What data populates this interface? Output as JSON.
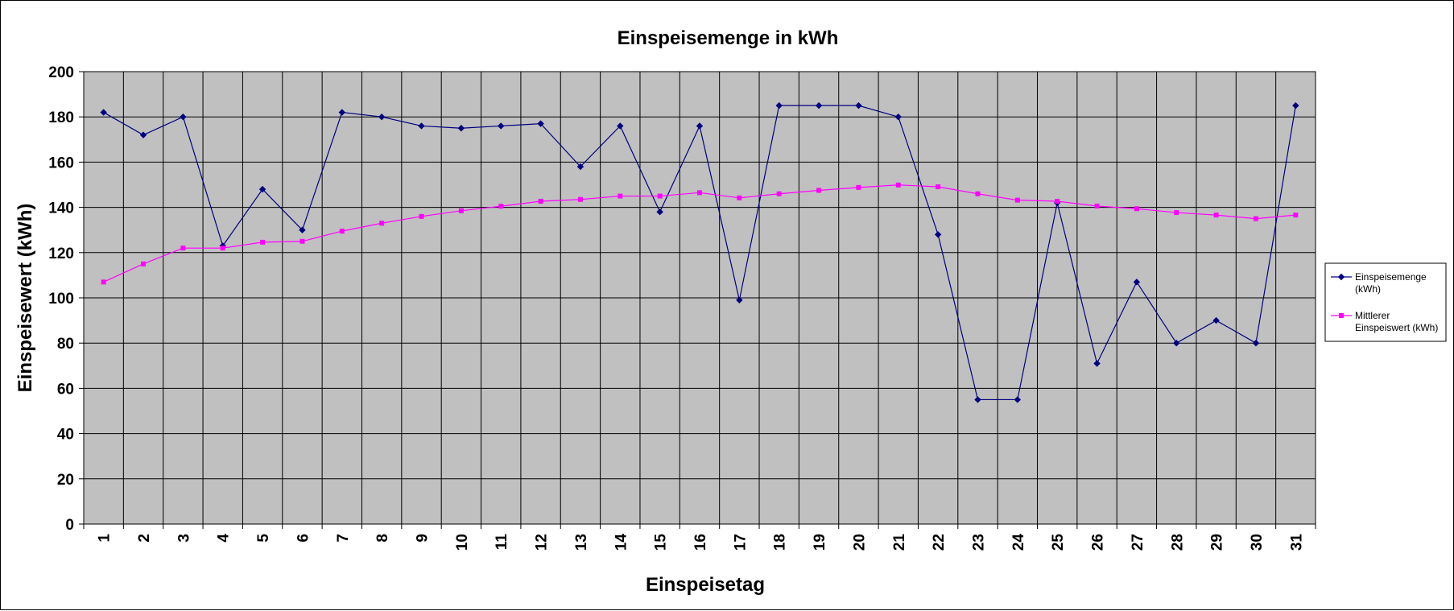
{
  "chart_data": {
    "type": "line",
    "title": "Einspeisemenge in kWh",
    "xlabel": "Einspeisetag",
    "ylabel": "Einspeisewert  (kWh)",
    "ylim": [
      0,
      200
    ],
    "yticks": [
      "0",
      "20",
      "40",
      "60",
      "80",
      "100",
      "120",
      "140",
      "160",
      "180",
      "200"
    ],
    "categories": [
      "1",
      "2",
      "3",
      "4",
      "5",
      "6",
      "7",
      "8",
      "9",
      "10",
      "11",
      "12",
      "13",
      "14",
      "15",
      "16",
      "17",
      "18",
      "19",
      "20",
      "21",
      "22",
      "23",
      "24",
      "25",
      "26",
      "27",
      "28",
      "29",
      "30",
      "31"
    ],
    "grid": true,
    "legend_position": "right",
    "plot_background": "#c0c0c0",
    "series": [
      {
        "name": "Einspeisemenge (kWh)",
        "legend_lines": [
          "Einspeisemenge",
          "(kWh)"
        ],
        "color": "#000080",
        "marker": "diamond",
        "values": [
          182,
          172,
          180,
          123,
          148,
          130,
          182,
          180,
          176,
          175,
          176,
          177,
          158,
          176,
          138,
          176,
          99,
          185,
          185,
          185,
          180,
          128,
          55,
          55,
          142,
          71,
          107,
          80,
          90,
          80,
          185
        ]
      },
      {
        "name": "Mittlerer Einspeiswert (kWh)",
        "legend_lines": [
          "Mittlerer",
          "Einspeiswert (kWh)"
        ],
        "color": "#ff00ff",
        "marker": "square",
        "values": [
          107,
          115,
          122,
          122,
          124.6,
          125,
          129.5,
          133,
          136,
          138.5,
          140.5,
          142.7,
          143.5,
          145,
          145,
          146.5,
          144.2,
          146,
          147.5,
          148.8,
          149.9,
          149.1,
          146,
          143.2,
          142.7,
          140.6,
          139.4,
          137.7,
          136.6,
          135,
          136.6
        ]
      }
    ]
  }
}
